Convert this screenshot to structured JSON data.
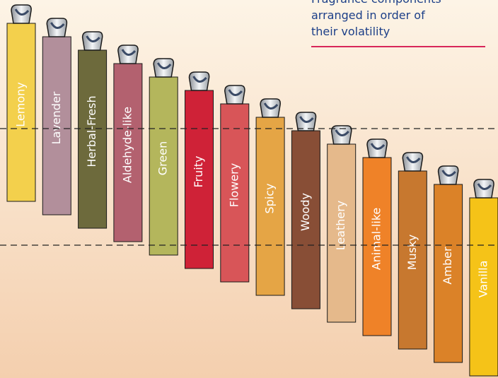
{
  "caption": [
    "Fragrance components",
    "arranged in order of",
    "their volatility"
  ],
  "components": [
    {
      "label": "Lemony",
      "color": "#f3d04c"
    },
    {
      "label": "Lavender",
      "color": "#b28f9b"
    },
    {
      "label": "Herbal-Fresh",
      "color": "#6d6a3c"
    },
    {
      "label": "Aldehyde-like",
      "color": "#b3616f"
    },
    {
      "label": "Green",
      "color": "#b4b65c"
    },
    {
      "label": "Fruity",
      "color": "#cf2237"
    },
    {
      "label": "Flowery",
      "color": "#d85558"
    },
    {
      "label": "Spicy",
      "color": "#e5a545"
    },
    {
      "label": "Woody",
      "color": "#884e36"
    },
    {
      "label": "Leathery",
      "color": "#e5b98b"
    },
    {
      "label": "Animal-like",
      "color": "#ef8228"
    },
    {
      "label": "Musky",
      "color": "#c7782f"
    },
    {
      "label": "Amber",
      "color": "#db8228"
    },
    {
      "label": "Vanilla",
      "color": "#f5c318"
    }
  ]
}
